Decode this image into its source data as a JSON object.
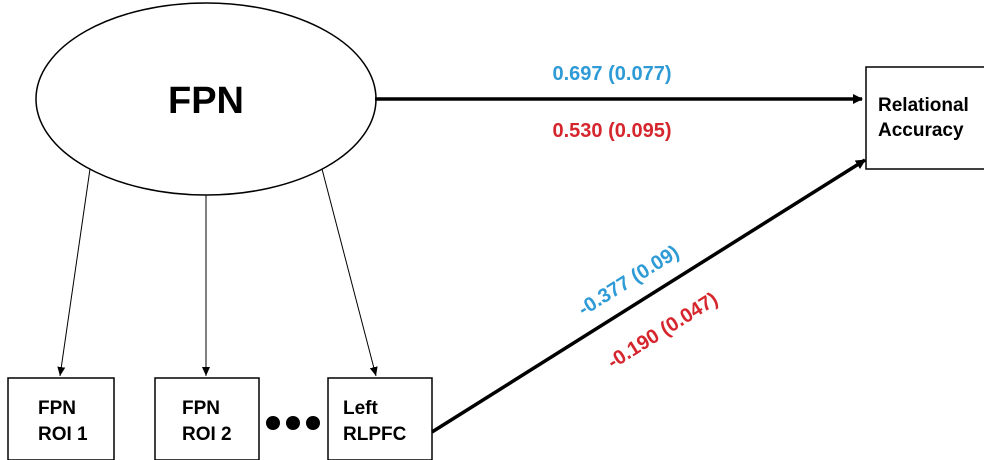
{
  "latent": {
    "label": "FPN"
  },
  "outcome": {
    "line1": "Relational",
    "line2": "Accuracy"
  },
  "indicators": [
    {
      "line1": "FPN",
      "line2": "ROI 1"
    },
    {
      "line1": "FPN",
      "line2": "ROI 2"
    },
    {
      "line1": "Left",
      "line2": "RLPFC"
    }
  ],
  "paths": {
    "fpn_to_accuracy": {
      "blue": "0.697 (0.077)",
      "red": "0.530 (0.095)"
    },
    "rlpfc_to_accuracy": {
      "blue": "-0.377 (0.09)",
      "red": "-0.190 (0.047)"
    }
  },
  "colors": {
    "blue": "#2e9bd6",
    "red": "#d6262d",
    "line": "#000000"
  }
}
